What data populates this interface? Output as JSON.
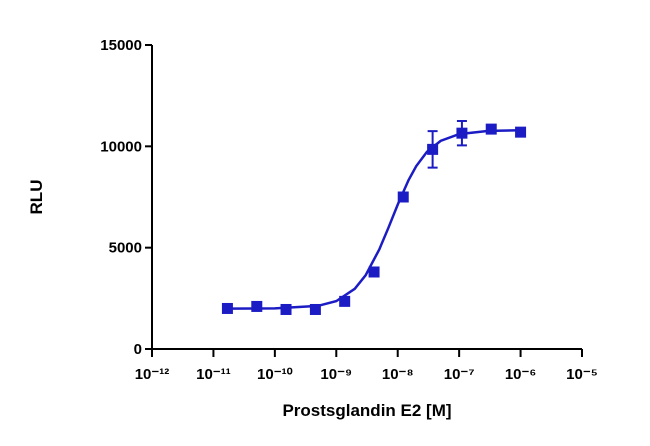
{
  "chart_data": {
    "type": "dose-response",
    "x_label": "Prostsglandin E2 [M]",
    "y_label": "RLU",
    "xscale": "log",
    "color": "#1c1cc4",
    "xlim": [
      1e-12,
      1e-05
    ],
    "xticks": [
      {
        "value": 1e-12,
        "label": "10⁻¹²"
      },
      {
        "value": 1e-11,
        "label": "10⁻¹¹"
      },
      {
        "value": 1e-10,
        "label": "10⁻¹⁰"
      },
      {
        "value": 1e-09,
        "label": "10⁻⁹"
      },
      {
        "value": 1e-08,
        "label": "10⁻⁸"
      },
      {
        "value": 1e-07,
        "label": "10⁻⁷"
      },
      {
        "value": 1e-06,
        "label": "10⁻⁶"
      },
      {
        "value": 1e-05,
        "label": "10⁻⁵"
      }
    ],
    "ylim": [
      0,
      15000
    ],
    "yticks": [
      0,
      5000,
      10000,
      15000
    ],
    "series": [
      {
        "style": "points",
        "x": [
          1.69e-11,
          5.08e-11,
          1.52e-10,
          4.57e-10,
          1.37e-09,
          4.12e-09,
          1.23e-08,
          3.7e-08,
          1.11e-07,
          3.33e-07,
          1e-06
        ],
        "values": [
          2000,
          2100,
          1950,
          1950,
          2350,
          3800,
          7500,
          9850,
          10650,
          10850,
          10700
        ],
        "errors": [
          150,
          100,
          100,
          150,
          100,
          150,
          150,
          900,
          600,
          100,
          100
        ]
      },
      {
        "style": "line",
        "x": [
          1.69e-11,
          1e-10,
          5e-10,
          1e-09,
          2e-09,
          3e-09,
          5e-09,
          7e-09,
          1e-08,
          1.5e-08,
          2e-08,
          3e-08,
          5e-08,
          1e-07,
          3e-07,
          1e-06
        ],
        "values": [
          1990,
          2002,
          2126,
          2363,
          2969,
          3637,
          4907,
          5955,
          7124,
          8333,
          9021,
          9732,
          10270,
          10605,
          10762,
          10795
        ]
      }
    ]
  }
}
